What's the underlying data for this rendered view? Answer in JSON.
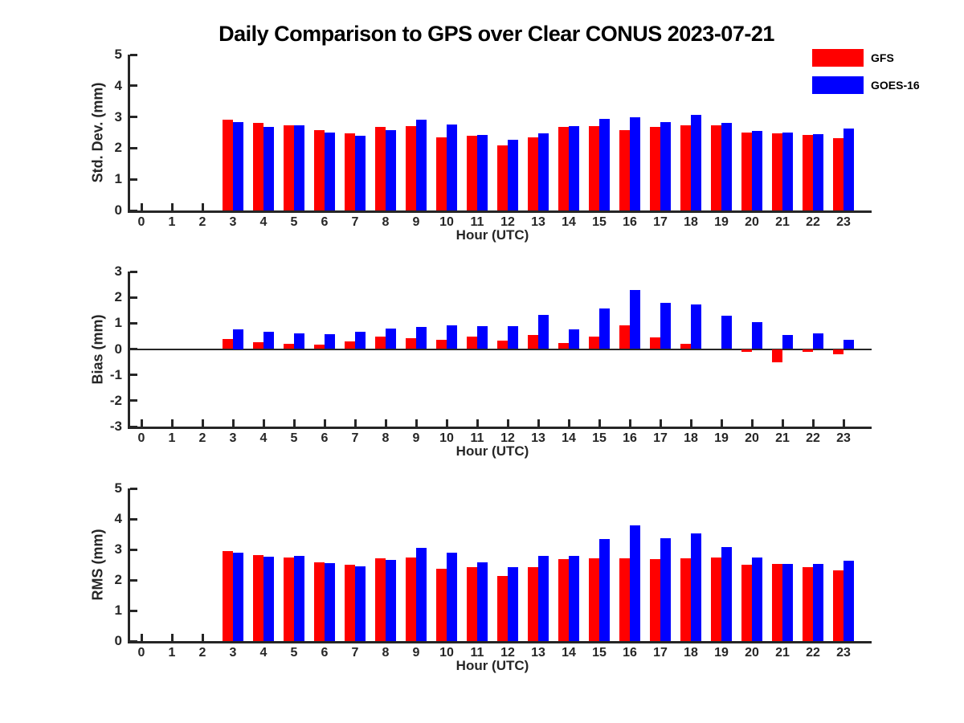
{
  "title": "Daily Comparison to GPS over Clear CONUS 2023-07-21",
  "legend": {
    "items": [
      {
        "label": "GFS",
        "color": "#ff0000"
      },
      {
        "label": "GOES-16",
        "color": "#0000ff"
      }
    ]
  },
  "chart_data": [
    {
      "type": "bar",
      "ylabel": "Std. Dev. (mm)",
      "xlabel": "Hour (UTC)",
      "ylim": [
        0,
        5
      ],
      "yticks": [
        0,
        1,
        2,
        3,
        4,
        5
      ],
      "grid": false,
      "legend_position": "top-right",
      "categories": [
        "0",
        "1",
        "2",
        "3",
        "4",
        "5",
        "6",
        "7",
        "8",
        "9",
        "10",
        "11",
        "12",
        "13",
        "14",
        "15",
        "16",
        "17",
        "18",
        "19",
        "20",
        "21",
        "22",
        "23"
      ],
      "series": [
        {
          "name": "GFS",
          "color": "#ff0000",
          "values": [
            null,
            null,
            null,
            2.92,
            2.8,
            2.72,
            2.57,
            2.47,
            2.67,
            2.7,
            2.35,
            2.4,
            2.1,
            2.34,
            2.67,
            2.7,
            2.58,
            2.68,
            2.72,
            2.73,
            2.5,
            2.47,
            2.42,
            2.31
          ]
        },
        {
          "name": "GOES-16",
          "color": "#0000ff",
          "values": [
            null,
            null,
            null,
            2.84,
            2.67,
            2.72,
            2.5,
            2.4,
            2.58,
            2.92,
            2.77,
            2.43,
            2.28,
            2.48,
            2.7,
            2.95,
            2.98,
            2.83,
            3.07,
            2.81,
            2.55,
            2.49,
            2.45,
            2.62
          ]
        }
      ]
    },
    {
      "type": "bar",
      "ylabel": "Bias (mm)",
      "xlabel": "Hour (UTC)",
      "ylim": [
        -3,
        3
      ],
      "yticks": [
        3,
        2,
        1,
        0,
        -1,
        -2,
        -3
      ],
      "zero_line": true,
      "grid": false,
      "categories": [
        "0",
        "1",
        "2",
        "3",
        "4",
        "5",
        "6",
        "7",
        "8",
        "9",
        "10",
        "11",
        "12",
        "13",
        "14",
        "15",
        "16",
        "17",
        "18",
        "19",
        "20",
        "21",
        "22",
        "23"
      ],
      "series": [
        {
          "name": "GFS",
          "color": "#ff0000",
          "values": [
            null,
            null,
            null,
            0.38,
            0.27,
            0.19,
            0.18,
            0.31,
            0.47,
            0.41,
            0.37,
            0.48,
            0.33,
            0.53,
            0.22,
            0.47,
            0.93,
            0.44,
            0.19,
            0.0,
            -0.1,
            -0.52,
            -0.1,
            -0.2
          ]
        },
        {
          "name": "GOES-16",
          "color": "#0000ff",
          "values": [
            null,
            null,
            null,
            0.75,
            0.66,
            0.62,
            0.59,
            0.66,
            0.79,
            0.84,
            0.91,
            0.89,
            0.9,
            1.33,
            0.77,
            1.57,
            2.3,
            1.8,
            1.72,
            1.3,
            1.05,
            0.53,
            0.62,
            0.36
          ]
        }
      ]
    },
    {
      "type": "bar",
      "ylabel": "RMS (mm)",
      "xlabel": "Hour (UTC)",
      "ylim": [
        0,
        5
      ],
      "yticks": [
        0,
        1,
        2,
        3,
        4,
        5
      ],
      "grid": false,
      "categories": [
        "0",
        "1",
        "2",
        "3",
        "4",
        "5",
        "6",
        "7",
        "8",
        "9",
        "10",
        "11",
        "12",
        "13",
        "14",
        "15",
        "16",
        "17",
        "18",
        "19",
        "20",
        "21",
        "22",
        "23"
      ],
      "series": [
        {
          "name": "GFS",
          "color": "#ff0000",
          "values": [
            null,
            null,
            null,
            2.95,
            2.82,
            2.74,
            2.59,
            2.49,
            2.71,
            2.74,
            2.38,
            2.43,
            2.14,
            2.41,
            2.69,
            2.71,
            2.71,
            2.69,
            2.72,
            2.75,
            2.49,
            2.53,
            2.41,
            2.32
          ]
        },
        {
          "name": "GOES-16",
          "color": "#0000ff",
          "values": [
            null,
            null,
            null,
            2.9,
            2.76,
            2.79,
            2.56,
            2.46,
            2.66,
            3.05,
            2.89,
            2.58,
            2.42,
            2.78,
            2.79,
            3.34,
            3.78,
            3.38,
            3.52,
            3.08,
            2.75,
            2.53,
            2.53,
            2.64
          ]
        }
      ]
    }
  ]
}
